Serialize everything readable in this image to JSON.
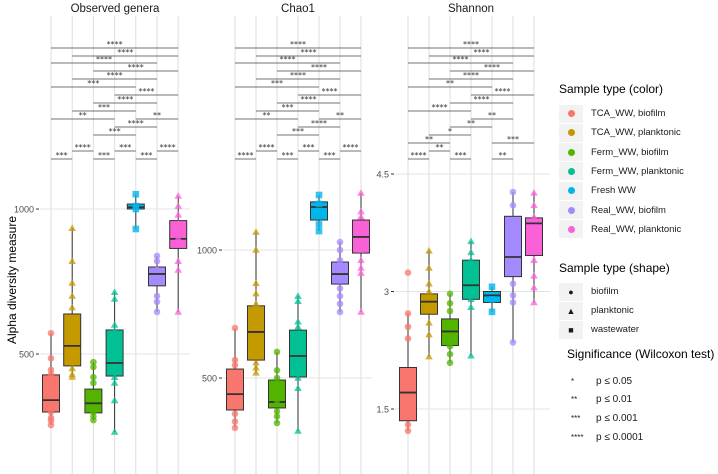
{
  "chart_data": {
    "type": "boxplot",
    "ylabel": "Alpha diversity measure",
    "groups": [
      "TCA_WW, biofilm",
      "TCA_WW, planktonic",
      "Ferm_WW, biofilm",
      "Ferm_WW, planktonic",
      "Fresh WW",
      "Real_WW, biofilm",
      "Real_WW, planktonic"
    ],
    "colors": [
      "#F8766D",
      "#C49A00",
      "#53B400",
      "#00C094",
      "#00B6EB",
      "#A58AFF",
      "#FB61D7"
    ],
    "shapes": [
      "biofilm",
      "planktonic",
      "biofilm",
      "planktonic",
      "wastewater",
      "biofilm",
      "planktonic"
    ],
    "panels": [
      {
        "title": "Observed genera",
        "yticks": [
          "500",
          "1000"
        ],
        "ytick_values": [
          500,
          1000
        ],
        "boxes": [
          {
            "min": 255,
            "q1": 300,
            "median": 341,
            "q3": 428,
            "max": 572,
            "points": [
              572,
              485,
              445,
              430,
              300,
              280,
              270,
              255
            ]
          },
          {
            "min": 421,
            "q1": 459,
            "median": 528,
            "q3": 638,
            "max": 934,
            "points": [
              934,
              820,
              745,
              700,
              660,
              620,
              470,
              450,
              430,
              421
            ]
          },
          {
            "min": 272,
            "q1": 297,
            "median": 330,
            "q3": 379,
            "max": 472,
            "points": [
              472,
              455,
              420,
              400,
              300,
              285,
              272
            ]
          },
          {
            "min": 231,
            "q1": 424,
            "median": 469,
            "q3": 583,
            "max": 713,
            "points": [
              713,
              690,
              600,
              580,
              420,
              400,
              340,
              231
            ]
          },
          {
            "min": 931,
            "q1": 1000,
            "median": 1006,
            "q3": 1017,
            "max": 1051,
            "points": [
              1051,
              1010,
              1000,
              931
            ]
          },
          {
            "min": 645,
            "q1": 735,
            "median": 776,
            "q3": 800,
            "max": 838,
            "points": [
              838,
              820,
              790,
              760,
              700,
              680,
              645
            ]
          },
          {
            "min": 645,
            "q1": 864,
            "median": 897,
            "q3": 960,
            "max": 1045,
            "points": [
              1045,
              1010,
              980,
              950,
              900,
              820,
              790,
              645
            ]
          }
        ],
        "comparisons": [
          {
            "a": 1,
            "b": 7,
            "label": "****"
          },
          {
            "a": 2,
            "b": 7,
            "label": "****"
          },
          {
            "a": 1,
            "b": 6,
            "label": "****"
          },
          {
            "a": 3,
            "b": 7,
            "label": "****"
          },
          {
            "a": 2,
            "b": 6,
            "label": "****"
          },
          {
            "a": 1,
            "b": 5,
            "label": "***"
          },
          {
            "a": 4,
            "b": 7,
            "label": "****"
          },
          {
            "a": 3,
            "b": 6,
            "label": "****"
          },
          {
            "a": 2,
            "b": 5,
            "label": "***"
          },
          {
            "a": 1,
            "b": 4,
            "label": "**"
          },
          {
            "a": 5,
            "b": 7,
            "label": "**"
          },
          {
            "a": 4,
            "b": 6,
            "label": "****"
          },
          {
            "a": 3,
            "b": 5,
            "label": "***"
          },
          {
            "a": 2,
            "b": 3,
            "label": "****"
          },
          {
            "a": 4,
            "b": 5,
            "label": "***"
          },
          {
            "a": 6,
            "b": 7,
            "label": "****"
          },
          {
            "a": 1,
            "b": 2,
            "label": "***"
          },
          {
            "a": 3,
            "b": 4,
            "label": "***"
          },
          {
            "a": 5,
            "b": 6,
            "label": "***"
          }
        ]
      },
      {
        "title": "Chao1",
        "yticks": [
          "500",
          "1000"
        ],
        "ytick_values": [
          500,
          1000
        ],
        "boxes": [
          {
            "min": 305,
            "q1": 375,
            "median": 437,
            "q3": 535,
            "max": 695,
            "points": [
              695,
              570,
              550,
              480,
              400,
              360,
              330,
              305
            ]
          },
          {
            "min": 520,
            "q1": 570,
            "median": 680,
            "q3": 782,
            "max": 1070,
            "points": [
              1070,
              1000,
              870,
              830,
              790,
              560,
              540,
              520
            ]
          },
          {
            "min": 324,
            "q1": 383,
            "median": 406,
            "q3": 492,
            "max": 602,
            "points": [
              602,
              530,
              500,
              400,
              370,
              350,
              324
            ]
          },
          {
            "min": 293,
            "q1": 504,
            "median": 586,
            "q3": 687,
            "max": 820,
            "points": [
              820,
              800,
              720,
              700,
              500,
              460,
              293
            ]
          },
          {
            "min": 1074,
            "q1": 1117,
            "median": 1168,
            "q3": 1188,
            "max": 1215,
            "points": [
              1215,
              1180,
              1100,
              1074
            ]
          },
          {
            "min": 758,
            "q1": 867,
            "median": 906,
            "q3": 953,
            "max": 1031,
            "points": [
              1031,
              1000,
              960,
              880,
              850,
              820,
              790,
              758
            ]
          },
          {
            "min": 758,
            "q1": 988,
            "median": 1051,
            "q3": 1117,
            "max": 1223,
            "points": [
              1223,
              1150,
              1130,
              1000,
              960,
              930,
              910,
              758
            ]
          }
        ],
        "comparisons": [
          {
            "a": 1,
            "b": 7,
            "label": "****"
          },
          {
            "a": 2,
            "b": 7,
            "label": "****"
          },
          {
            "a": 1,
            "b": 6,
            "label": "****"
          },
          {
            "a": 3,
            "b": 7,
            "label": "****"
          },
          {
            "a": 2,
            "b": 6,
            "label": "****"
          },
          {
            "a": 1,
            "b": 5,
            "label": "***"
          },
          {
            "a": 4,
            "b": 7,
            "label": "****"
          },
          {
            "a": 3,
            "b": 6,
            "label": "****"
          },
          {
            "a": 2,
            "b": 5,
            "label": "***"
          },
          {
            "a": 1,
            "b": 4,
            "label": "**"
          },
          {
            "a": 5,
            "b": 7,
            "label": "**"
          },
          {
            "a": 4,
            "b": 6,
            "label": "****"
          },
          {
            "a": 3,
            "b": 5,
            "label": "***"
          },
          {
            "a": 2,
            "b": 3,
            "label": "****"
          },
          {
            "a": 4,
            "b": 5,
            "label": "***"
          },
          {
            "a": 6,
            "b": 7,
            "label": "****"
          },
          {
            "a": 1,
            "b": 2,
            "label": "****"
          },
          {
            "a": 3,
            "b": 4,
            "label": "***"
          },
          {
            "a": 5,
            "b": 6,
            "label": "***"
          }
        ]
      },
      {
        "title": "Shannon",
        "yticks": [
          "1.5",
          "3",
          "4.5"
        ],
        "ytick_values": [
          1.5,
          3,
          4.5
        ],
        "boxes": [
          {
            "min": 1.22,
            "q1": 1.35,
            "median": 1.71,
            "q3": 2.03,
            "max": 2.72,
            "points": [
              3.24,
              2.72,
              2.55,
              2.4,
              1.3,
              1.22
            ]
          },
          {
            "min": 2.17,
            "q1": 2.71,
            "median": 2.87,
            "q3": 2.97,
            "max": 3.52,
            "points": [
              3.52,
              3.3,
              3.1,
              3.0,
              2.8,
              2.6,
              2.45,
              2.17
            ]
          },
          {
            "min": 2.09,
            "q1": 2.31,
            "median": 2.49,
            "q3": 2.65,
            "max": 2.97,
            "points": [
              2.97,
              2.85,
              2.75,
              2.6,
              2.3,
              2.2,
              2.09
            ]
          },
          {
            "min": 2.18,
            "q1": 2.9,
            "median": 3.08,
            "q3": 3.4,
            "max": 3.64,
            "points": [
              3.64,
              3.5,
              3.4,
              2.9,
              2.8,
              2.18
            ]
          },
          {
            "min": 2.74,
            "q1": 2.86,
            "median": 2.95,
            "q3": 3.0,
            "max": 3.06,
            "points": [
              3.06,
              2.9,
              2.74
            ]
          },
          {
            "min": 2.35,
            "q1": 3.19,
            "median": 3.44,
            "q3": 3.96,
            "max": 4.27,
            "points": [
              4.27,
              4.1,
              3.9,
              3.1,
              2.95,
              2.86,
              2.35
            ]
          },
          {
            "min": 2.86,
            "q1": 3.46,
            "median": 3.87,
            "q3": 3.94,
            "max": 4.26,
            "points": [
              4.26,
              4.1,
              3.95,
              3.7,
              3.4,
              3.2,
              3.05,
              2.86
            ]
          }
        ],
        "comparisons": [
          {
            "a": 1,
            "b": 7,
            "label": "****"
          },
          {
            "a": 2,
            "b": 7,
            "label": "****"
          },
          {
            "a": 1,
            "b": 6,
            "label": "****"
          },
          {
            "a": 3,
            "b": 7,
            "label": "****"
          },
          {
            "a": 2,
            "b": 6,
            "label": "****"
          },
          {
            "a": 1,
            "b": 5,
            "label": "**"
          },
          {
            "a": 4,
            "b": 7,
            "label": "****"
          },
          {
            "a": 3,
            "b": 6,
            "label": "****"
          },
          {
            "a": 1,
            "b": 4,
            "label": "****"
          },
          {
            "a": 4,
            "b": 6,
            "label": "**"
          },
          {
            "a": 3,
            "b": 5,
            "label": "**"
          },
          {
            "a": 2,
            "b": 4,
            "label": "*"
          },
          {
            "a": 1,
            "b": 3,
            "label": "**"
          },
          {
            "a": 5,
            "b": 7,
            "label": "***"
          },
          {
            "a": 2,
            "b": 3,
            "label": "**"
          },
          {
            "a": 1,
            "b": 2,
            "label": "****"
          },
          {
            "a": 3,
            "b": 4,
            "label": "***"
          },
          {
            "a": 5,
            "b": 6,
            "label": "**"
          }
        ]
      }
    ]
  },
  "legend": {
    "color_title": "Sample type (color)",
    "shape_title": "Sample type (shape)",
    "shapes": [
      "biofilm",
      "planktonic",
      "wastewater"
    ],
    "shape_glyphs": [
      "●",
      "▲",
      "■"
    ],
    "sig_title": "Significance (Wilcoxon test)",
    "sig": [
      {
        "stars": "*",
        "text": "p ≤ 0.05"
      },
      {
        "stars": "**",
        "text": "p ≤ 0.01"
      },
      {
        "stars": "***",
        "text": "p ≤ 0.001"
      },
      {
        "stars": "****",
        "text": "p ≤ 0.0001"
      }
    ]
  }
}
